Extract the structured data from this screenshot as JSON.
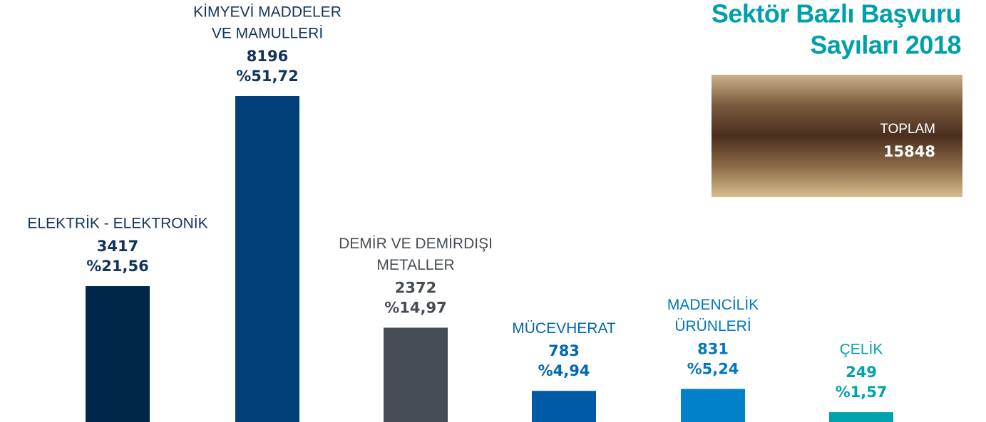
{
  "chart_data": {
    "type": "bar",
    "title": [
      "Sektör Bazlı Başvuru",
      "Sayıları 2018"
    ],
    "categories": [
      [
        "ELEKTRİK - ELEKTRONİK"
      ],
      [
        "KİMYEVİ MADDELER",
        "VE MAMULLERİ"
      ],
      [
        "DEMİR VE DEMİRDIŞI",
        "METALLER"
      ],
      [
        "MÜCEVHERAT"
      ],
      [
        "MADENCİLİK",
        "ÜRÜNLERİ"
      ],
      [
        "ÇELİK"
      ]
    ],
    "values": [
      3417,
      8196,
      2372,
      783,
      831,
      249
    ],
    "shares": [
      21.56,
      51.72,
      14.97,
      4.94,
      5.24,
      1.57
    ],
    "share_labels": [
      "%21,56",
      "%51,72",
      "%14,97",
      "%4,94",
      "%5,24",
      "%1,57"
    ],
    "colors": [
      "#00264a",
      "#003f77",
      "#474d54",
      "#005aa5",
      "#0081c8",
      "#00a3ad"
    ],
    "label_colors": [
      "#12345a",
      "#12345a",
      "#474d54",
      "#0066b0",
      "#0077c0",
      "#00a3ad"
    ],
    "total_label": "TOPLAM",
    "total": 15848
  }
}
